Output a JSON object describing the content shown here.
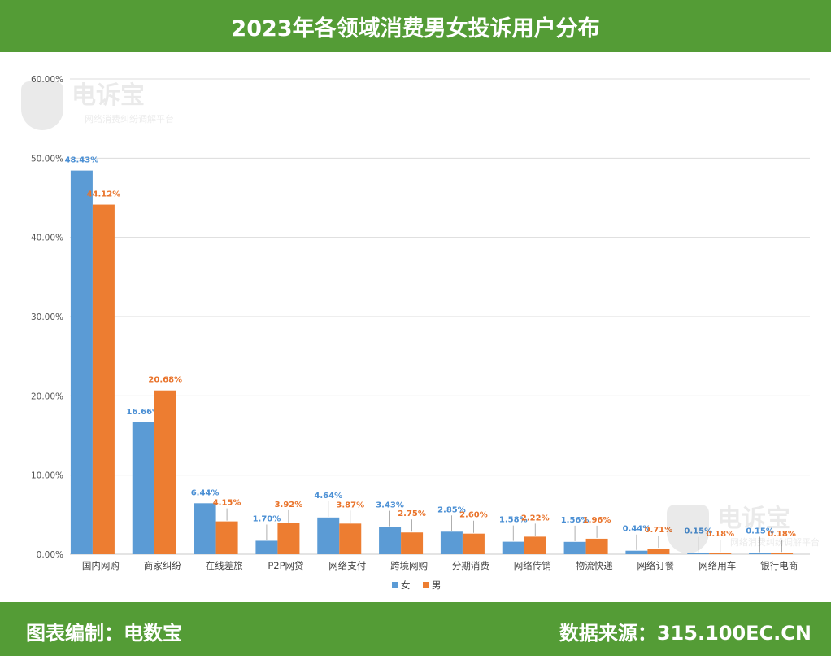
{
  "header": {
    "title": "2023年各领域消费男女投诉用户分布"
  },
  "footer": {
    "left": "图表编制：电数宝",
    "right": "数据来源：315.100EC.CN"
  },
  "watermark": {
    "title": "电诉宝",
    "subtitle": "网络消费纠纷调解平台"
  },
  "chart_data": {
    "type": "bar",
    "title": "2023年各领域消费男女投诉用户分布",
    "xlabel": "",
    "ylabel": "",
    "ylim": [
      0,
      60
    ],
    "yticks": [
      "0.00%",
      "10.00%",
      "20.00%",
      "30.00%",
      "40.00%",
      "50.00%",
      "60.00%"
    ],
    "grid": true,
    "legend": "bottom",
    "categories": [
      "国内网购",
      "商家纠纷",
      "在线差旅",
      "P2P网贷",
      "网络支付",
      "跨境网购",
      "分期消费",
      "网络传销",
      "物流快递",
      "网络订餐",
      "网络用车",
      "银行电商"
    ],
    "series": [
      {
        "name": "女",
        "color": "#5b9bd5",
        "label_color": "#4a8fd4",
        "values": [
          48.43,
          16.66,
          6.44,
          1.7,
          4.64,
          3.43,
          2.85,
          1.58,
          1.56,
          0.44,
          0.15,
          0.15
        ],
        "labels": [
          "48.43%",
          "16.66%",
          "6.44%",
          "1.70%",
          "4.64%",
          "3.43%",
          "2.85%",
          "1.58%",
          "1.56%",
          "0.44%",
          "0.15%",
          "0.15%"
        ]
      },
      {
        "name": "男",
        "color": "#ed7d31",
        "label_color": "#e9732a",
        "values": [
          44.12,
          20.68,
          4.15,
          3.92,
          3.87,
          2.75,
          2.6,
          2.22,
          1.96,
          0.71,
          0.18,
          0.18
        ],
        "labels": [
          "44.12%",
          "20.68%",
          "4.15%",
          "3.92%",
          "3.87%",
          "2.75%",
          "2.60%",
          "2.22%",
          "1.96%",
          "0.71%",
          "0.18%",
          "0.18%"
        ]
      }
    ]
  }
}
